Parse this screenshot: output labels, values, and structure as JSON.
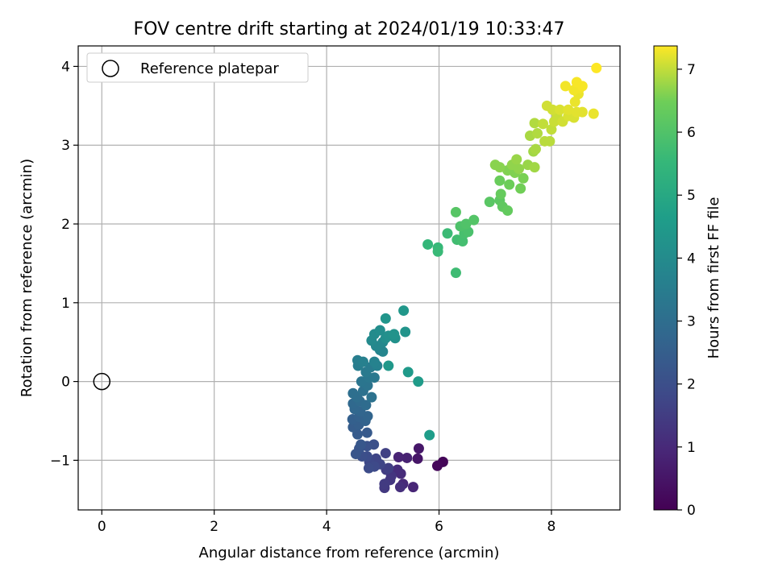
{
  "chart_data": {
    "type": "scatter",
    "title": "FOV centre drift starting at 2024/01/19 10:33:47",
    "xlabel": "Angular distance from reference (arcmin)",
    "ylabel": "Rotation from reference (arcmin)",
    "xlim": [
      -0.42,
      9.22
    ],
    "ylim": [
      -1.63,
      4.26
    ],
    "xticks": [
      0,
      2,
      4,
      6,
      8
    ],
    "yticks": [
      -1,
      0,
      1,
      2,
      3,
      4
    ],
    "grid": true,
    "legend": {
      "placement": "top-left",
      "entries": [
        "Reference platepar"
      ]
    },
    "reference_point": {
      "x": 0,
      "y": 0
    },
    "colorbar": {
      "label": "Hours from first FF file",
      "min": 0,
      "max": 7.37,
      "ticks": [
        0,
        1,
        2,
        3,
        4,
        5,
        6,
        7
      ],
      "colormap": "viridis"
    },
    "points": [
      {
        "x": 6.07,
        "y": -1.02,
        "h": 0.1
      },
      {
        "x": 5.97,
        "y": -1.07,
        "h": 0.15
      },
      {
        "x": 5.62,
        "y": -0.98,
        "h": 0.5
      },
      {
        "x": 5.64,
        "y": -0.85,
        "h": 0.55
      },
      {
        "x": 5.43,
        "y": -0.97,
        "h": 0.8
      },
      {
        "x": 5.28,
        "y": -0.96,
        "h": 0.85
      },
      {
        "x": 5.54,
        "y": -1.34,
        "h": 0.9
      },
      {
        "x": 5.36,
        "y": -1.3,
        "h": 1.0
      },
      {
        "x": 5.32,
        "y": -1.17,
        "h": 1.05
      },
      {
        "x": 5.26,
        "y": -1.12,
        "h": 1.1
      },
      {
        "x": 5.31,
        "y": -1.34,
        "h": 1.15
      },
      {
        "x": 5.15,
        "y": -1.2,
        "h": 1.3
      },
      {
        "x": 5.13,
        "y": -1.25,
        "h": 1.35
      },
      {
        "x": 5.03,
        "y": -1.35,
        "h": 1.4
      },
      {
        "x": 5.03,
        "y": -1.3,
        "h": 1.45
      },
      {
        "x": 5.06,
        "y": -1.12,
        "h": 1.5
      },
      {
        "x": 5.1,
        "y": -1.1,
        "h": 1.55
      },
      {
        "x": 5.05,
        "y": -0.91,
        "h": 1.6
      },
      {
        "x": 4.95,
        "y": -1.05,
        "h": 1.7
      },
      {
        "x": 4.88,
        "y": -0.98,
        "h": 1.75
      },
      {
        "x": 4.76,
        "y": -1.02,
        "h": 1.8
      },
      {
        "x": 4.85,
        "y": -1.08,
        "h": 1.85
      },
      {
        "x": 4.75,
        "y": -1.1,
        "h": 1.9
      },
      {
        "x": 4.72,
        "y": -0.95,
        "h": 1.95
      },
      {
        "x": 4.63,
        "y": -0.95,
        "h": 2.0
      },
      {
        "x": 4.84,
        "y": -0.8,
        "h": 2.05
      },
      {
        "x": 4.72,
        "y": -0.82,
        "h": 2.1
      },
      {
        "x": 4.58,
        "y": -0.85,
        "h": 2.15
      },
      {
        "x": 4.52,
        "y": -0.92,
        "h": 2.2
      },
      {
        "x": 4.61,
        "y": -0.8,
        "h": 2.25
      },
      {
        "x": 4.72,
        "y": -0.65,
        "h": 2.35
      },
      {
        "x": 4.55,
        "y": -0.67,
        "h": 2.4
      },
      {
        "x": 4.47,
        "y": -0.58,
        "h": 2.45
      },
      {
        "x": 4.57,
        "y": -0.55,
        "h": 2.5
      },
      {
        "x": 4.46,
        "y": -0.48,
        "h": 2.55
      },
      {
        "x": 4.58,
        "y": -0.45,
        "h": 2.6
      },
      {
        "x": 4.69,
        "y": -0.5,
        "h": 2.65
      },
      {
        "x": 4.73,
        "y": -0.44,
        "h": 2.7
      },
      {
        "x": 4.6,
        "y": -0.38,
        "h": 2.75
      },
      {
        "x": 4.5,
        "y": -0.35,
        "h": 2.8
      },
      {
        "x": 4.47,
        "y": -0.28,
        "h": 2.85
      },
      {
        "x": 4.59,
        "y": -0.25,
        "h": 2.9
      },
      {
        "x": 4.7,
        "y": -0.3,
        "h": 2.95
      },
      {
        "x": 4.54,
        "y": -0.2,
        "h": 3.0
      },
      {
        "x": 4.47,
        "y": -0.15,
        "h": 3.05
      },
      {
        "x": 4.65,
        "y": -0.12,
        "h": 3.1
      },
      {
        "x": 4.8,
        "y": -0.2,
        "h": 3.15
      },
      {
        "x": 4.73,
        "y": -0.05,
        "h": 3.2
      },
      {
        "x": 4.62,
        "y": 0.0,
        "h": 3.25
      },
      {
        "x": 4.75,
        "y": 0.05,
        "h": 3.3
      },
      {
        "x": 4.85,
        "y": 0.05,
        "h": 3.35
      },
      {
        "x": 4.7,
        "y": 0.12,
        "h": 3.4
      },
      {
        "x": 4.78,
        "y": 0.18,
        "h": 3.45
      },
      {
        "x": 4.56,
        "y": 0.2,
        "h": 3.5
      },
      {
        "x": 4.55,
        "y": 0.27,
        "h": 3.55
      },
      {
        "x": 4.65,
        "y": 0.25,
        "h": 3.6
      },
      {
        "x": 4.9,
        "y": 0.2,
        "h": 3.65
      },
      {
        "x": 4.85,
        "y": 0.25,
        "h": 3.7
      },
      {
        "x": 4.95,
        "y": 0.4,
        "h": 3.75
      },
      {
        "x": 5.0,
        "y": 0.38,
        "h": 3.8
      },
      {
        "x": 4.88,
        "y": 0.45,
        "h": 3.85
      },
      {
        "x": 5.0,
        "y": 0.5,
        "h": 3.9
      },
      {
        "x": 4.8,
        "y": 0.52,
        "h": 3.95
      },
      {
        "x": 4.85,
        "y": 0.6,
        "h": 4.0
      },
      {
        "x": 4.95,
        "y": 0.65,
        "h": 4.05
      },
      {
        "x": 5.05,
        "y": 0.55,
        "h": 4.1
      },
      {
        "x": 5.1,
        "y": 0.58,
        "h": 4.15
      },
      {
        "x": 5.22,
        "y": 0.55,
        "h": 4.2
      },
      {
        "x": 5.2,
        "y": 0.6,
        "h": 4.25
      },
      {
        "x": 5.4,
        "y": 0.63,
        "h": 4.3
      },
      {
        "x": 5.05,
        "y": 0.8,
        "h": 4.35
      },
      {
        "x": 5.37,
        "y": 0.9,
        "h": 4.4
      },
      {
        "x": 5.1,
        "y": 0.2,
        "h": 4.45
      },
      {
        "x": 5.45,
        "y": 0.12,
        "h": 4.5
      },
      {
        "x": 5.63,
        "y": 0.0,
        "h": 4.55
      },
      {
        "x": 5.83,
        "y": -0.68,
        "h": 4.6
      },
      {
        "x": 5.8,
        "y": 1.74,
        "h": 5.5
      },
      {
        "x": 5.98,
        "y": 1.7,
        "h": 5.55
      },
      {
        "x": 5.98,
        "y": 1.65,
        "h": 5.6
      },
      {
        "x": 6.15,
        "y": 1.88,
        "h": 5.65
      },
      {
        "x": 6.3,
        "y": 1.38,
        "h": 5.7
      },
      {
        "x": 6.32,
        "y": 1.8,
        "h": 5.75
      },
      {
        "x": 6.42,
        "y": 1.78,
        "h": 5.8
      },
      {
        "x": 6.45,
        "y": 1.88,
        "h": 5.85
      },
      {
        "x": 6.52,
        "y": 1.9,
        "h": 5.9
      },
      {
        "x": 6.38,
        "y": 1.97,
        "h": 5.95
      },
      {
        "x": 6.48,
        "y": 2.0,
        "h": 6.0
      },
      {
        "x": 6.62,
        "y": 2.05,
        "h": 6.05
      },
      {
        "x": 6.3,
        "y": 2.15,
        "h": 6.1
      },
      {
        "x": 6.9,
        "y": 2.28,
        "h": 6.15
      },
      {
        "x": 7.08,
        "y": 2.3,
        "h": 6.2
      },
      {
        "x": 7.13,
        "y": 2.22,
        "h": 6.25
      },
      {
        "x": 7.22,
        "y": 2.17,
        "h": 6.3
      },
      {
        "x": 7.1,
        "y": 2.38,
        "h": 6.35
      },
      {
        "x": 7.08,
        "y": 2.55,
        "h": 6.4
      },
      {
        "x": 7.25,
        "y": 2.5,
        "h": 6.45
      },
      {
        "x": 7.45,
        "y": 2.45,
        "h": 6.5
      },
      {
        "x": 7.5,
        "y": 2.58,
        "h": 6.55
      },
      {
        "x": 7.35,
        "y": 2.65,
        "h": 6.6
      },
      {
        "x": 7.22,
        "y": 2.68,
        "h": 6.6
      },
      {
        "x": 7.0,
        "y": 2.75,
        "h": 6.65
      },
      {
        "x": 7.08,
        "y": 2.72,
        "h": 6.65
      },
      {
        "x": 7.3,
        "y": 2.75,
        "h": 6.7
      },
      {
        "x": 7.42,
        "y": 2.7,
        "h": 6.7
      },
      {
        "x": 7.38,
        "y": 2.82,
        "h": 6.75
      },
      {
        "x": 7.58,
        "y": 2.75,
        "h": 6.75
      },
      {
        "x": 7.7,
        "y": 2.72,
        "h": 6.8
      },
      {
        "x": 7.68,
        "y": 2.92,
        "h": 6.8
      },
      {
        "x": 7.72,
        "y": 2.95,
        "h": 6.85
      },
      {
        "x": 7.62,
        "y": 3.12,
        "h": 6.85
      },
      {
        "x": 7.75,
        "y": 3.15,
        "h": 6.9
      },
      {
        "x": 7.7,
        "y": 3.28,
        "h": 6.9
      },
      {
        "x": 7.88,
        "y": 3.05,
        "h": 6.95
      },
      {
        "x": 7.97,
        "y": 3.05,
        "h": 6.95
      },
      {
        "x": 7.85,
        "y": 3.27,
        "h": 7.0
      },
      {
        "x": 8.0,
        "y": 3.2,
        "h": 7.0
      },
      {
        "x": 8.05,
        "y": 3.3,
        "h": 7.05
      },
      {
        "x": 8.1,
        "y": 3.38,
        "h": 7.05
      },
      {
        "x": 7.92,
        "y": 3.5,
        "h": 7.1
      },
      {
        "x": 8.02,
        "y": 3.45,
        "h": 7.1
      },
      {
        "x": 8.2,
        "y": 3.3,
        "h": 7.1
      },
      {
        "x": 8.3,
        "y": 3.37,
        "h": 7.15
      },
      {
        "x": 8.4,
        "y": 3.35,
        "h": 7.15
      },
      {
        "x": 8.15,
        "y": 3.45,
        "h": 7.15
      },
      {
        "x": 8.3,
        "y": 3.45,
        "h": 7.2
      },
      {
        "x": 8.45,
        "y": 3.42,
        "h": 7.2
      },
      {
        "x": 8.55,
        "y": 3.42,
        "h": 7.2
      },
      {
        "x": 8.75,
        "y": 3.4,
        "h": 7.25
      },
      {
        "x": 8.42,
        "y": 3.55,
        "h": 7.25
      },
      {
        "x": 8.48,
        "y": 3.65,
        "h": 7.25
      },
      {
        "x": 8.5,
        "y": 3.72,
        "h": 7.3
      },
      {
        "x": 8.4,
        "y": 3.7,
        "h": 7.3
      },
      {
        "x": 8.25,
        "y": 3.75,
        "h": 7.3
      },
      {
        "x": 8.45,
        "y": 3.8,
        "h": 7.33
      },
      {
        "x": 8.55,
        "y": 3.75,
        "h": 7.33
      },
      {
        "x": 8.8,
        "y": 3.98,
        "h": 7.37
      }
    ]
  }
}
